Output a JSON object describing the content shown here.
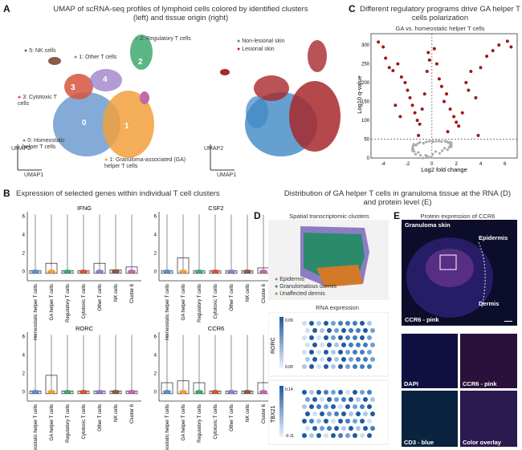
{
  "panels": {
    "A": {
      "letter": "A",
      "title": "UMAP of scRNA-seq profiles of lymphoid cells colored by identified clusters (left) and tissue origin (right)",
      "clusters": [
        {
          "num": "0",
          "label": "0: Homeostatic helper T cells",
          "color": "#5b8fc9"
        },
        {
          "num": "1",
          "label": "1: Granuloma-associated (GA) helper T cells",
          "color": "#f2a03d"
        },
        {
          "num": "2",
          "label": "2: Regulatory T cells",
          "color": "#3daa6f"
        },
        {
          "num": "3",
          "label": "3: Cytotoxic T cells",
          "color": "#d6533d"
        },
        {
          "num": "4",
          "label": "4",
          "color": "#9a7bc8"
        },
        {
          "num": "5",
          "label": "5: NK cells",
          "color": "#8a5a4a"
        },
        {
          "num": "6",
          "label": "6",
          "color": "#c06aa8"
        }
      ],
      "other_t_label": "1: Other T cells",
      "legend": [
        {
          "label": "Non-lesional skin",
          "color": "#3f88c5"
        },
        {
          "label": "Lesional skin",
          "color": "#a8282c"
        }
      ],
      "umap1": "UMAP1",
      "umap2": "UMAP2"
    },
    "B": {
      "letter": "B",
      "title": "Expression of selected genes within individual T cell clusters",
      "genes": [
        "IFNG",
        "CSF2",
        "RORC",
        "CCR6"
      ],
      "categories": [
        "Homeostatic helper T cells",
        "GA helper T cells",
        "Regulatory T cells",
        "Cytotoxic T cells",
        "Other T cells",
        "NK cells",
        "Cluster 6"
      ],
      "yticks": [
        "0",
        "2",
        "4",
        "6"
      ]
    },
    "C": {
      "letter": "C",
      "title": "Different regulatory programs drive GA helper T cells polarization",
      "subtitle": "GA vs. homeostatic helper T cells",
      "xlabel": "Log2 fold change",
      "ylabel": "Log10 q-value",
      "xticks": [
        "-4",
        "-2",
        "0",
        "2",
        "4",
        "6"
      ],
      "yticks": [
        "0",
        "50",
        "100",
        "150",
        "200",
        "250",
        "300"
      ]
    },
    "D": {
      "letter": "D",
      "title": "Distribution of GA helper T cells in granuloma tissue at the RNA (D) and protein level (E)",
      "spatial_title": "Spatial transcriptomic clusters",
      "legend": [
        {
          "label": "Epidermis",
          "color": "#8c7dc3"
        },
        {
          "label": "Granulomatous dermis",
          "color": "#2a8a6a"
        },
        {
          "label": "Unaffected dermis",
          "color": "#d27a2a"
        }
      ],
      "rna_title": "RNA expression",
      "rorc": {
        "gene": "RORC",
        "max": "0.09",
        "min": "0.00"
      },
      "tbx21": {
        "gene": "TBX21",
        "max": "0.14",
        "min": "-0.11"
      }
    },
    "E": {
      "letter": "E",
      "title": "Protein expression of CCR6",
      "main_labels": {
        "granuloma": "Granuloma skin",
        "epidermis": "Epidermis",
        "dermis": "Dermis",
        "ccr6": "CCR6 - pink"
      },
      "tiles": [
        "DAPI",
        "CCR6 - pink",
        "CD3 - blue",
        "Color overlay"
      ]
    }
  },
  "chart_data": {
    "type": "scatter",
    "title": "GA vs. homeostatic helper T cells",
    "xlabel": "Log2 fold change",
    "ylabel": "Log10 q-value",
    "xlim": [
      -5,
      7
    ],
    "ylim": [
      0,
      330
    ],
    "threshold_q": 50,
    "points": [
      [
        -4.4,
        308
      ],
      [
        -4.0,
        295
      ],
      [
        -3.8,
        265
      ],
      [
        -3.5,
        240
      ],
      [
        -3.2,
        232
      ],
      [
        -2.8,
        250
      ],
      [
        -2.5,
        215
      ],
      [
        -2.2,
        200
      ],
      [
        -2.0,
        180
      ],
      [
        -1.8,
        160
      ],
      [
        -1.6,
        140
      ],
      [
        -1.4,
        120
      ],
      [
        -1.2,
        100
      ],
      [
        -1.0,
        90
      ],
      [
        -0.8,
        130
      ],
      [
        -0.6,
        170
      ],
      [
        -0.4,
        230
      ],
      [
        -0.3,
        280
      ],
      [
        -0.2,
        260
      ],
      [
        0.2,
        290
      ],
      [
        0.4,
        250
      ],
      [
        0.6,
        210
      ],
      [
        0.8,
        190
      ],
      [
        1.0,
        150
      ],
      [
        1.2,
        170
      ],
      [
        1.5,
        130
      ],
      [
        1.8,
        110
      ],
      [
        2.0,
        95
      ],
      [
        2.2,
        85
      ],
      [
        2.5,
        120
      ],
      [
        2.8,
        200
      ],
      [
        3.0,
        180
      ],
      [
        3.2,
        230
      ],
      [
        3.6,
        160
      ],
      [
        4.0,
        240
      ],
      [
        4.5,
        270
      ],
      [
        5.0,
        285
      ],
      [
        5.5,
        300
      ],
      [
        6.2,
        310
      ],
      [
        6.5,
        295
      ],
      [
        -3.0,
        140
      ],
      [
        -2.6,
        110
      ],
      [
        1.3,
        70
      ],
      [
        3.8,
        60
      ],
      [
        -1.1,
        60
      ]
    ]
  }
}
